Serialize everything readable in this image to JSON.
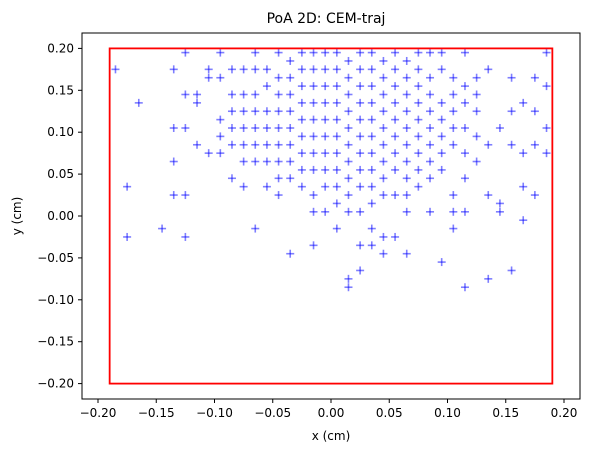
{
  "chart_data": {
    "type": "scatter",
    "title": "PoA 2D: CEM-traj",
    "xlabel": "x (cm)",
    "ylabel": "y (cm)",
    "xlim": [
      -0.2,
      0.2
    ],
    "ylim": [
      -0.22,
      0.22
    ],
    "x_ticks": [
      -0.2,
      -0.15,
      -0.1,
      -0.05,
      0.0,
      0.05,
      0.1,
      0.15,
      0.2
    ],
    "x_tick_labels": [
      "−0.20",
      "−0.15",
      "−0.10",
      "−0.05",
      "0.00",
      "0.05",
      "0.10",
      "0.15",
      "0.20"
    ],
    "y_ticks": [
      -0.2,
      -0.15,
      -0.1,
      -0.05,
      0.0,
      0.05,
      0.1,
      0.15,
      0.2
    ],
    "y_tick_labels": [
      "−0.20",
      "−0.15",
      "−0.10",
      "−0.05",
      "0.00",
      "0.05",
      "0.10",
      "0.15",
      "0.20"
    ],
    "grid": false,
    "marker": "+",
    "marker_color": "#0000ff",
    "marker_alpha": 0.5,
    "bounds_box": {
      "color": "#ff0000",
      "x": [
        -0.19,
        0.19
      ],
      "y": [
        -0.2,
        0.2
      ]
    },
    "points": [
      [
        -0.185,
        0.175
      ],
      [
        -0.175,
        0.035
      ],
      [
        -0.175,
        -0.025
      ],
      [
        -0.165,
        0.135
      ],
      [
        -0.145,
        -0.015
      ],
      [
        -0.135,
        0.175
      ],
      [
        -0.135,
        0.105
      ],
      [
        -0.135,
        0.065
      ],
      [
        -0.135,
        0.025
      ],
      [
        -0.125,
        0.195
      ],
      [
        -0.125,
        0.145
      ],
      [
        -0.125,
        0.105
      ],
      [
        -0.125,
        0.025
      ],
      [
        -0.125,
        -0.025
      ],
      [
        -0.115,
        0.145
      ],
      [
        -0.115,
        0.135
      ],
      [
        -0.115,
        0.085
      ],
      [
        -0.105,
        0.175
      ],
      [
        -0.105,
        0.165
      ],
      [
        -0.105,
        0.075
      ],
      [
        -0.095,
        0.195
      ],
      [
        -0.095,
        0.165
      ],
      [
        -0.095,
        0.115
      ],
      [
        -0.095,
        0.095
      ],
      [
        -0.095,
        0.075
      ],
      [
        -0.085,
        0.175
      ],
      [
        -0.085,
        0.145
      ],
      [
        -0.085,
        0.125
      ],
      [
        -0.085,
        0.105
      ],
      [
        -0.085,
        0.085
      ],
      [
        -0.085,
        0.045
      ],
      [
        -0.075,
        0.175
      ],
      [
        -0.075,
        0.145
      ],
      [
        -0.075,
        0.125
      ],
      [
        -0.075,
        0.105
      ],
      [
        -0.075,
        0.085
      ],
      [
        -0.075,
        0.065
      ],
      [
        -0.075,
        0.035
      ],
      [
        -0.065,
        0.195
      ],
      [
        -0.065,
        0.175
      ],
      [
        -0.065,
        0.145
      ],
      [
        -0.065,
        0.125
      ],
      [
        -0.065,
        0.105
      ],
      [
        -0.065,
        0.085
      ],
      [
        -0.065,
        0.065
      ],
      [
        -0.065,
        -0.015
      ],
      [
        -0.055,
        0.175
      ],
      [
        -0.055,
        0.155
      ],
      [
        -0.055,
        0.125
      ],
      [
        -0.055,
        0.105
      ],
      [
        -0.055,
        0.085
      ],
      [
        -0.055,
        0.065
      ],
      [
        -0.055,
        0.035
      ],
      [
        -0.045,
        0.195
      ],
      [
        -0.045,
        0.165
      ],
      [
        -0.045,
        0.145
      ],
      [
        -0.045,
        0.125
      ],
      [
        -0.045,
        0.105
      ],
      [
        -0.045,
        0.085
      ],
      [
        -0.045,
        0.065
      ],
      [
        -0.045,
        0.045
      ],
      [
        -0.045,
        0.025
      ],
      [
        -0.035,
        0.185
      ],
      [
        -0.035,
        0.165
      ],
      [
        -0.035,
        0.145
      ],
      [
        -0.035,
        0.125
      ],
      [
        -0.035,
        0.105
      ],
      [
        -0.035,
        0.085
      ],
      [
        -0.035,
        0.065
      ],
      [
        -0.035,
        0.045
      ],
      [
        -0.035,
        -0.045
      ],
      [
        -0.025,
        0.195
      ],
      [
        -0.025,
        0.175
      ],
      [
        -0.025,
        0.155
      ],
      [
        -0.025,
        0.135
      ],
      [
        -0.025,
        0.115
      ],
      [
        -0.025,
        0.095
      ],
      [
        -0.025,
        0.075
      ],
      [
        -0.025,
        0.055
      ],
      [
        -0.025,
        0.035
      ],
      [
        -0.015,
        0.195
      ],
      [
        -0.015,
        0.175
      ],
      [
        -0.015,
        0.155
      ],
      [
        -0.015,
        0.135
      ],
      [
        -0.015,
        0.115
      ],
      [
        -0.015,
        0.095
      ],
      [
        -0.015,
        0.075
      ],
      [
        -0.015,
        0.055
      ],
      [
        -0.015,
        0.025
      ],
      [
        -0.015,
        0.005
      ],
      [
        -0.015,
        -0.035
      ],
      [
        -0.005,
        0.195
      ],
      [
        -0.005,
        0.175
      ],
      [
        -0.005,
        0.155
      ],
      [
        -0.005,
        0.135
      ],
      [
        -0.005,
        0.115
      ],
      [
        -0.005,
        0.095
      ],
      [
        -0.005,
        0.075
      ],
      [
        -0.005,
        0.055
      ],
      [
        -0.005,
        0.035
      ],
      [
        -0.005,
        0.005
      ],
      [
        0.005,
        0.195
      ],
      [
        0.005,
        0.175
      ],
      [
        0.005,
        0.155
      ],
      [
        0.005,
        0.135
      ],
      [
        0.005,
        0.115
      ],
      [
        0.005,
        0.095
      ],
      [
        0.005,
        0.075
      ],
      [
        0.005,
        0.055
      ],
      [
        0.005,
        0.035
      ],
      [
        0.005,
        0.015
      ],
      [
        0.005,
        -0.015
      ],
      [
        0.015,
        0.185
      ],
      [
        0.015,
        0.165
      ],
      [
        0.015,
        0.145
      ],
      [
        0.015,
        0.125
      ],
      [
        0.015,
        0.105
      ],
      [
        0.015,
        0.085
      ],
      [
        0.015,
        0.065
      ],
      [
        0.015,
        0.045
      ],
      [
        0.015,
        0.025
      ],
      [
        0.015,
        0.005
      ],
      [
        0.015,
        -0.075
      ],
      [
        0.015,
        -0.085
      ],
      [
        0.025,
        0.195
      ],
      [
        0.025,
        0.175
      ],
      [
        0.025,
        0.155
      ],
      [
        0.025,
        0.135
      ],
      [
        0.025,
        0.115
      ],
      [
        0.025,
        0.095
      ],
      [
        0.025,
        0.075
      ],
      [
        0.025,
        0.055
      ],
      [
        0.025,
        0.035
      ],
      [
        0.025,
        0.005
      ],
      [
        0.025,
        -0.035
      ],
      [
        0.025,
        -0.065
      ],
      [
        0.035,
        0.195
      ],
      [
        0.035,
        0.175
      ],
      [
        0.035,
        0.155
      ],
      [
        0.035,
        0.135
      ],
      [
        0.035,
        0.115
      ],
      [
        0.035,
        0.095
      ],
      [
        0.035,
        0.075
      ],
      [
        0.035,
        0.055
      ],
      [
        0.035,
        0.035
      ],
      [
        0.035,
        0.015
      ],
      [
        0.035,
        -0.015
      ],
      [
        0.035,
        -0.035
      ],
      [
        0.045,
        0.185
      ],
      [
        0.045,
        0.165
      ],
      [
        0.045,
        0.145
      ],
      [
        0.045,
        0.125
      ],
      [
        0.045,
        0.105
      ],
      [
        0.045,
        0.085
      ],
      [
        0.045,
        0.065
      ],
      [
        0.045,
        0.045
      ],
      [
        0.045,
        0.025
      ],
      [
        0.045,
        -0.025
      ],
      [
        0.045,
        -0.045
      ],
      [
        0.055,
        0.195
      ],
      [
        0.055,
        0.175
      ],
      [
        0.055,
        0.155
      ],
      [
        0.055,
        0.135
      ],
      [
        0.055,
        0.115
      ],
      [
        0.055,
        0.095
      ],
      [
        0.055,
        0.075
      ],
      [
        0.055,
        0.055
      ],
      [
        0.055,
        0.025
      ],
      [
        0.055,
        -0.025
      ],
      [
        0.065,
        0.185
      ],
      [
        0.065,
        0.165
      ],
      [
        0.065,
        0.145
      ],
      [
        0.065,
        0.125
      ],
      [
        0.065,
        0.105
      ],
      [
        0.065,
        0.085
      ],
      [
        0.065,
        0.065
      ],
      [
        0.065,
        0.045
      ],
      [
        0.065,
        0.025
      ],
      [
        0.065,
        0.005
      ],
      [
        0.065,
        -0.045
      ],
      [
        0.075,
        0.195
      ],
      [
        0.075,
        0.175
      ],
      [
        0.075,
        0.155
      ],
      [
        0.075,
        0.135
      ],
      [
        0.075,
        0.115
      ],
      [
        0.075,
        0.095
      ],
      [
        0.075,
        0.075
      ],
      [
        0.075,
        0.055
      ],
      [
        0.075,
        0.035
      ],
      [
        0.085,
        0.195
      ],
      [
        0.085,
        0.165
      ],
      [
        0.085,
        0.145
      ],
      [
        0.085,
        0.125
      ],
      [
        0.085,
        0.105
      ],
      [
        0.085,
        0.085
      ],
      [
        0.085,
        0.065
      ],
      [
        0.085,
        0.045
      ],
      [
        0.085,
        0.005
      ],
      [
        0.095,
        0.195
      ],
      [
        0.095,
        0.175
      ],
      [
        0.095,
        0.135
      ],
      [
        0.095,
        0.115
      ],
      [
        0.095,
        0.095
      ],
      [
        0.095,
        0.075
      ],
      [
        0.095,
        0.055
      ],
      [
        0.095,
        -0.055
      ],
      [
        0.105,
        0.165
      ],
      [
        0.105,
        0.145
      ],
      [
        0.105,
        0.125
      ],
      [
        0.105,
        0.105
      ],
      [
        0.105,
        0.085
      ],
      [
        0.105,
        0.025
      ],
      [
        0.105,
        0.005
      ],
      [
        0.105,
        -0.015
      ],
      [
        0.115,
        0.195
      ],
      [
        0.115,
        0.155
      ],
      [
        0.115,
        0.135
      ],
      [
        0.115,
        0.105
      ],
      [
        0.115,
        0.075
      ],
      [
        0.115,
        0.045
      ],
      [
        0.115,
        0.005
      ],
      [
        0.115,
        -0.085
      ],
      [
        0.125,
        0.165
      ],
      [
        0.125,
        0.145
      ],
      [
        0.125,
        0.125
      ],
      [
        0.125,
        0.095
      ],
      [
        0.125,
        0.065
      ],
      [
        0.135,
        0.175
      ],
      [
        0.135,
        0.085
      ],
      [
        0.135,
        0.025
      ],
      [
        0.135,
        -0.075
      ],
      [
        0.145,
        0.105
      ],
      [
        0.145,
        0.015
      ],
      [
        0.145,
        0.005
      ],
      [
        0.155,
        0.165
      ],
      [
        0.155,
        0.125
      ],
      [
        0.155,
        0.085
      ],
      [
        0.155,
        -0.065
      ],
      [
        0.165,
        0.135
      ],
      [
        0.165,
        0.075
      ],
      [
        0.165,
        0.035
      ],
      [
        0.165,
        -0.005
      ],
      [
        0.175,
        0.165
      ],
      [
        0.175,
        0.125
      ],
      [
        0.175,
        0.085
      ],
      [
        0.175,
        0.025
      ],
      [
        0.185,
        0.195
      ],
      [
        0.185,
        0.155
      ],
      [
        0.185,
        0.105
      ],
      [
        0.185,
        0.075
      ]
    ]
  }
}
